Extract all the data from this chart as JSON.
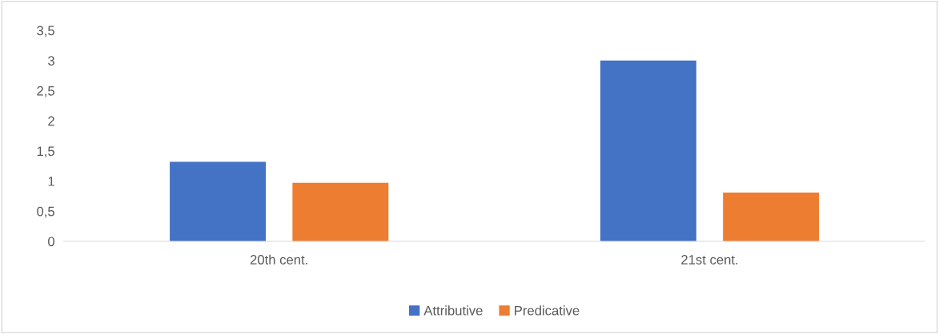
{
  "chart_data": {
    "type": "bar",
    "categories": [
      "20th cent.",
      "21st cent."
    ],
    "series": [
      {
        "name": "Attributive",
        "color": "#4472c4",
        "values": [
          1.32,
          3.0
        ]
      },
      {
        "name": "Predicative",
        "color": "#ed7d31",
        "values": [
          0.97,
          0.81
        ]
      }
    ],
    "ylim": [
      0,
      3.5
    ],
    "yticks": [
      0,
      {
        "value": 0.5,
        "label": "0,5"
      },
      1,
      {
        "value": 1.5,
        "label": "1,5"
      },
      2,
      {
        "value": 2.5,
        "label": "2,5"
      },
      3,
      {
        "value": 3.5,
        "label": "3,5"
      }
    ],
    "grid": false,
    "legend": "bottom"
  }
}
